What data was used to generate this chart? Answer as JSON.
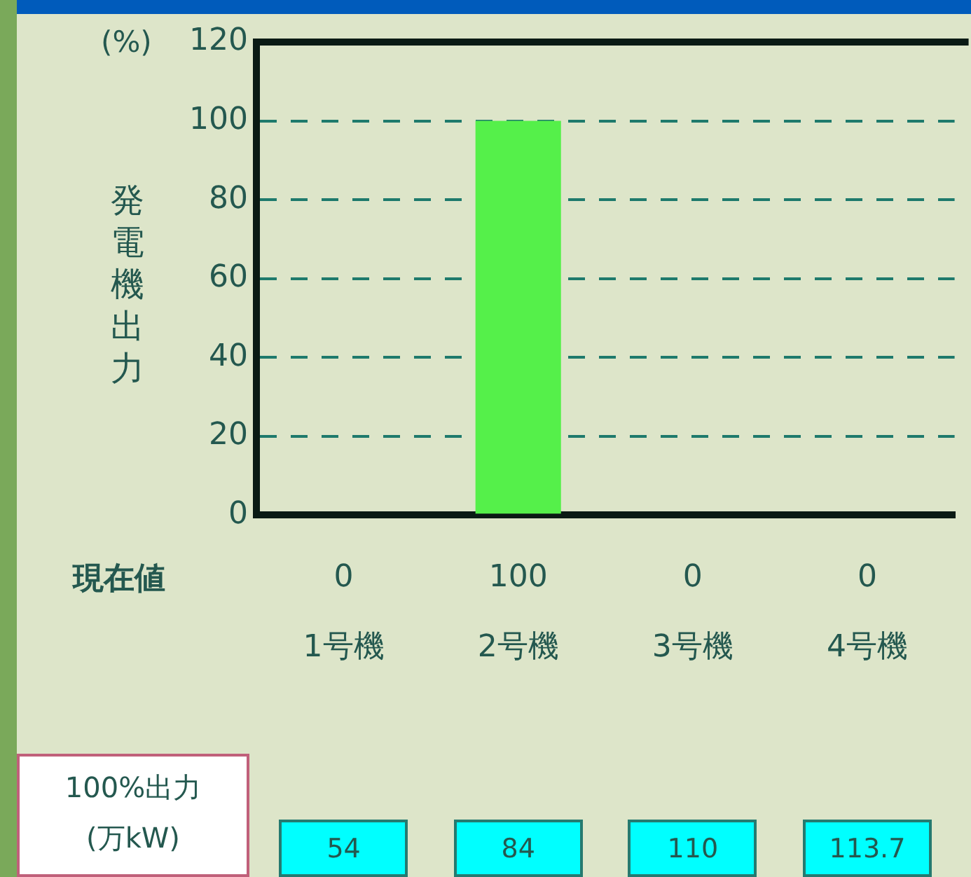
{
  "chart_data": {
    "type": "bar",
    "ylabel": "発電機出力",
    "categories": [
      "1号機",
      "2号機",
      "3号機",
      "4号機"
    ],
    "values": [
      0,
      100,
      0,
      0
    ],
    "color": "#55f04a",
    "data_labels": true,
    "ylim": [
      0,
      120
    ],
    "yticks": [
      0,
      20,
      40,
      60,
      80,
      100,
      120
    ],
    "grid": "y",
    "annotations": [
      "(%)",
      "現在値",
      "100%出力\n(万kW)",
      "54",
      "84",
      "110",
      "113.7"
    ]
  }
}
